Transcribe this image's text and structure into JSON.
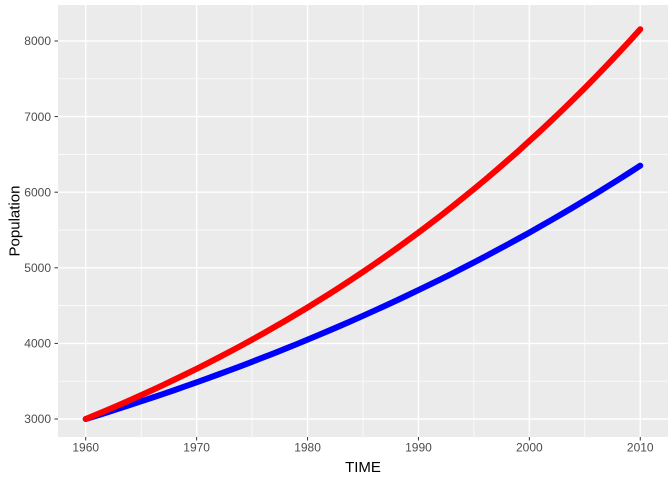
{
  "chart_data": {
    "type": "line",
    "title": "",
    "xlabel": "TIME",
    "ylabel": "Population",
    "xlim": [
      1957.5,
      2012.5
    ],
    "ylim": [
      2762,
      8476
    ],
    "x_ticks": [
      1960,
      1970,
      1980,
      1990,
      2000,
      2010
    ],
    "x_minor_ticks": [
      1965,
      1975,
      1985,
      1995,
      2005
    ],
    "y_ticks": [
      3000,
      4000,
      5000,
      6000,
      7000,
      8000
    ],
    "y_minor_ticks": [
      3500,
      4500,
      5500,
      6500,
      7500
    ],
    "grid": true,
    "legend": "none",
    "panel_background": "#EBEBEB",
    "grid_color": "#FFFFFF",
    "tick_label_color": "#4D4D4D",
    "tick_mark_color": "#333333",
    "x": [
      1960,
      1961,
      1962,
      1963,
      1964,
      1965,
      1966,
      1967,
      1968,
      1969,
      1970,
      1971,
      1972,
      1973,
      1974,
      1975,
      1976,
      1977,
      1978,
      1979,
      1980,
      1981,
      1982,
      1983,
      1984,
      1985,
      1986,
      1987,
      1988,
      1989,
      1990,
      1991,
      1992,
      1993,
      1994,
      1995,
      1996,
      1997,
      1998,
      1999,
      2000,
      2001,
      2002,
      2003,
      2004,
      2005,
      2006,
      2007,
      2008,
      2009,
      2010
    ],
    "series": [
      {
        "name": "blue",
        "color": "#0000FF",
        "values": [
          3000,
          3045,
          3091,
          3138,
          3186,
          3234,
          3283,
          3332,
          3382,
          3434,
          3485,
          3538,
          3592,
          3646,
          3701,
          3757,
          3814,
          3871,
          3930,
          3989,
          4050,
          4111,
          4173,
          4236,
          4300,
          4365,
          4431,
          4498,
          4566,
          4635,
          4705,
          4776,
          4848,
          4921,
          4996,
          5071,
          5148,
          5226,
          5305,
          5385,
          5466,
          5549,
          5633,
          5718,
          5804,
          5892,
          5981,
          6072,
          6163,
          6256,
          6351
        ]
      },
      {
        "name": "red",
        "color": "#FF0000",
        "values": [
          3000,
          3061,
          3122,
          3186,
          3250,
          3316,
          3382,
          3451,
          3521,
          3592,
          3664,
          3738,
          3814,
          3891,
          3969,
          4050,
          4131,
          4215,
          4300,
          4387,
          4475,
          4566,
          4658,
          4752,
          4848,
          4946,
          5046,
          5148,
          5252,
          5358,
          5466,
          5577,
          5689,
          5804,
          5922,
          6041,
          6163,
          6288,
          6415,
          6544,
          6677,
          6811,
          6949,
          7089,
          7233,
          7379,
          7528,
          7680,
          7835,
          7993,
          8155
        ]
      }
    ]
  }
}
